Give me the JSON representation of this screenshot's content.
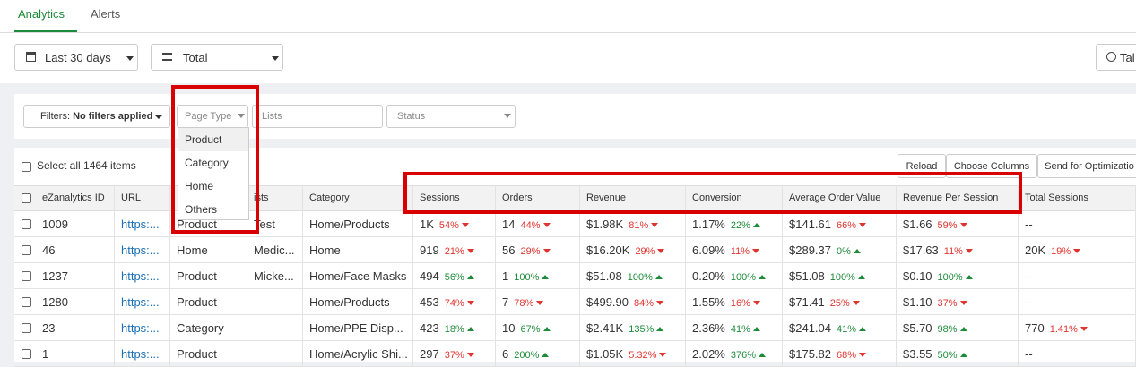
{
  "tabs": [
    "Analytics",
    "Alerts"
  ],
  "toolbar": {
    "date_range": "Last 30 days",
    "view": "Total",
    "right_button": "Tal"
  },
  "filters": {
    "label": "Filters:",
    "value": "No filters applied",
    "page_type": "Page Type",
    "lists": "Lists",
    "status": "Status"
  },
  "dropdown": [
    "Product",
    "Category",
    "Home",
    "Others"
  ],
  "select_all": "Select all 1464 items",
  "buttons": [
    "Reload",
    "Choose Columns",
    "Send for Optimizatio"
  ],
  "table": {
    "headers": [
      "eZanalytics ID",
      "URL",
      null,
      "ists",
      "Category",
      "Sessions",
      "Orders",
      "Revenue",
      "Conversion",
      "Average Order Value",
      "Revenue Per Session",
      "Total Sessions"
    ],
    "rows": [
      [
        "1009",
        "https:...",
        "Product",
        "Test",
        "Home/Products",
        {
          "value": "1K",
          "change": "54%",
          "trend": "down"
        },
        {
          "value": "14",
          "change": "44%",
          "trend": "down"
        },
        {
          "value": "$1.98K",
          "change": "81%",
          "trend": "down"
        },
        {
          "value": "1.17%",
          "change": "22%",
          "trend": "up"
        },
        {
          "value": "$141.61",
          "change": "66%",
          "trend": "down"
        },
        {
          "value": "$1.66",
          "change": "59%",
          "trend": "down"
        },
        "--"
      ],
      [
        "46",
        "https:...",
        "Home",
        "Medic...",
        "Home",
        {
          "value": "919",
          "change": "21%",
          "trend": "down"
        },
        {
          "value": "56",
          "change": "29%",
          "trend": "down"
        },
        {
          "value": "$16.20K",
          "change": "29%",
          "trend": "down"
        },
        {
          "value": "6.09%",
          "change": "11%",
          "trend": "down"
        },
        {
          "value": "$289.37",
          "change": "0%",
          "trend": "up"
        },
        {
          "value": "$17.63",
          "change": "11%",
          "trend": "down"
        },
        {
          "value": "20K",
          "change": "19%",
          "trend": "down"
        }
      ],
      [
        "1237",
        "https:...",
        "Product",
        "Micke...",
        "Home/Face Masks",
        {
          "value": "494",
          "change": "56%",
          "trend": "up"
        },
        {
          "value": "1",
          "change": "100%",
          "trend": "up"
        },
        {
          "value": "$51.08",
          "change": "100%",
          "trend": "up"
        },
        {
          "value": "0.20%",
          "change": "100%",
          "trend": "up"
        },
        {
          "value": "$51.08",
          "change": "100%",
          "trend": "up"
        },
        {
          "value": "$0.10",
          "change": "100%",
          "trend": "up"
        },
        "--"
      ],
      [
        "1280",
        "https:...",
        "Product",
        null,
        "Home/Products",
        {
          "value": "453",
          "change": "74%",
          "trend": "down"
        },
        {
          "value": "7",
          "change": "78%",
          "trend": "down"
        },
        {
          "value": "$499.90",
          "change": "84%",
          "trend": "down"
        },
        {
          "value": "1.55%",
          "change": "16%",
          "trend": "down"
        },
        {
          "value": "$71.41",
          "change": "25%",
          "trend": "down"
        },
        {
          "value": "$1.10",
          "change": "37%",
          "trend": "down"
        },
        "--"
      ],
      [
        "23",
        "https:...",
        "Category",
        null,
        "Home/PPE Disp...",
        {
          "value": "423",
          "change": "18%",
          "trend": "up"
        },
        {
          "value": "10",
          "change": "67%",
          "trend": "up"
        },
        {
          "value": "$2.41K",
          "change": "135%",
          "trend": "up"
        },
        {
          "value": "2.36%",
          "change": "41%",
          "trend": "up"
        },
        {
          "value": "$241.04",
          "change": "41%",
          "trend": "up"
        },
        {
          "value": "$5.70",
          "change": "98%",
          "trend": "up"
        },
        {
          "value": "770",
          "change": "1.41%",
          "trend": "down"
        }
      ],
      [
        "1",
        "https:...",
        "Product",
        null,
        "Home/Acrylic Shi...",
        {
          "value": "297",
          "change": "37%",
          "trend": "down"
        },
        {
          "value": "6",
          "change": "200%",
          "trend": "up"
        },
        {
          "value": "$1.05K",
          "change": "5.32%",
          "trend": "down"
        },
        {
          "value": "2.02%",
          "change": "376%",
          "trend": "up"
        },
        {
          "value": "$175.82",
          "change": "68%",
          "trend": "down"
        },
        {
          "value": "$3.55",
          "change": "50%",
          "trend": "up"
        },
        "--"
      ]
    ]
  }
}
